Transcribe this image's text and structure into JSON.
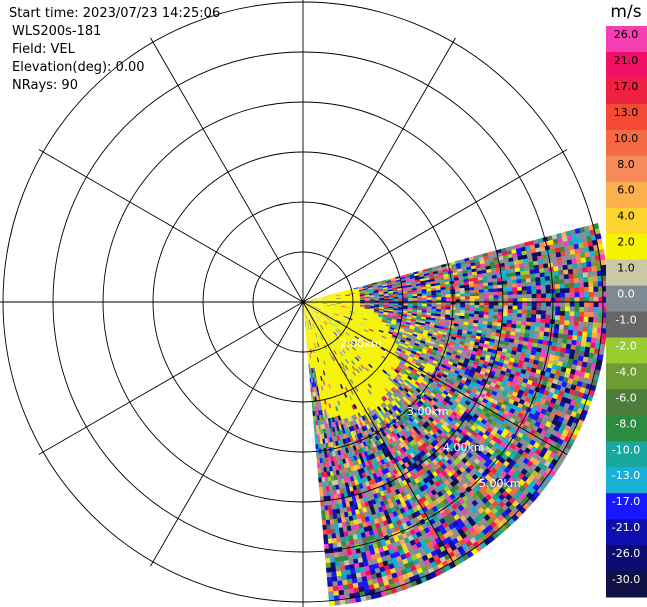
{
  "header": {
    "start_time": "Start time: 2023/07/23 14:25:06",
    "instrument": "WLS200s-181",
    "field": "Field: VEL",
    "elevation": "Elevation(deg): 0.00",
    "nrays": "NRays: 90"
  },
  "chart_data": {
    "type": "heatmap",
    "projection": "polar-ppi",
    "sector_azimuth_deg": [
      75,
      175
    ],
    "range_rings": [
      "2.00km",
      "3.00km",
      "4.00km",
      "5.00km"
    ],
    "colorbar": {
      "unit": "m/s",
      "ticks": [
        "26.0",
        "21.0",
        "17.0",
        "13.0",
        "10.0",
        "8.0",
        "6.0",
        "4.0",
        "2.0",
        "1.0",
        "0.0",
        "-1.0",
        "-2.0",
        "-4.0",
        "-6.0",
        "-8.0",
        "-10.0",
        "-13.0",
        "-17.0",
        "-21.0",
        "-26.0",
        "-30.0"
      ],
      "colors": [
        "#f63fb2",
        "#f40f66",
        "#ee2240",
        "#f24a33",
        "#f56a45",
        "#f88a5a",
        "#fbb04d",
        "#fbd430",
        "#f6f300",
        "#c9c9a6",
        "#7e8a93",
        "#666666",
        "#9acb2f",
        "#6e9c34",
        "#4c7d3a",
        "#2a8c3f",
        "#1aa7a0",
        "#19b0d8",
        "#1818ff",
        "#0f0fb0",
        "#0b0b70",
        "#101045"
      ]
    },
    "near_field_color": "#f6f300",
    "clutter_color": "#8a8f94"
  }
}
